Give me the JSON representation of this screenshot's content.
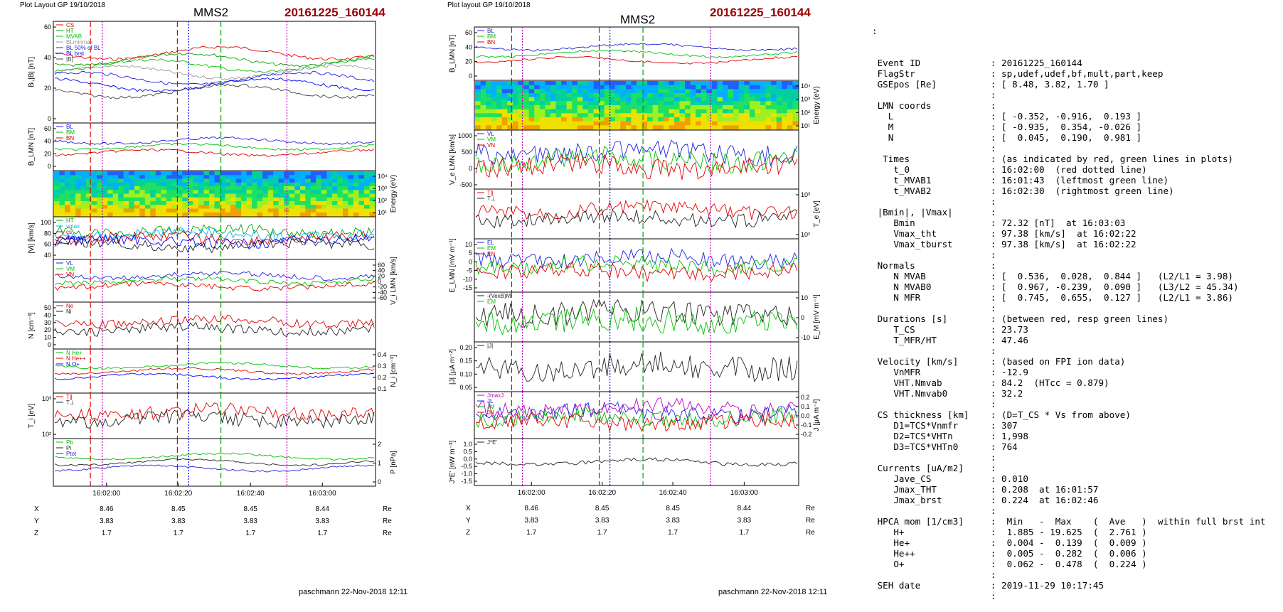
{
  "left_figure": {
    "header_left": "Plot Layout GP 19/10/2018",
    "spacecraft": "MMS2",
    "event_label": "20161225_160144",
    "footer": "paschmann 22-Nov-2018 12:11",
    "time_ticks": [
      "16:02:00",
      "16:02:20",
      "16:02:40",
      "16:03:00"
    ],
    "ephem": {
      "rows": [
        {
          "name": "X",
          "values": [
            "8.46",
            "8.45",
            "8.45",
            "8.44"
          ],
          "unit": "Re"
        },
        {
          "name": "Y",
          "values": [
            "3.83",
            "3.83",
            "3.83",
            "3.83"
          ],
          "unit": "Re"
        },
        {
          "name": "Z",
          "values": [
            "1.7",
            "1.7",
            "1.7",
            "1.7"
          ],
          "unit": "Re"
        }
      ]
    },
    "panels": [
      {
        "ylabel": "Bₗ,|B| [nT]",
        "yticks": [
          "60",
          "40",
          "20",
          "0"
        ],
        "right_ticks": [],
        "legend": [
          {
            "text": "CS",
            "color": "#e00000"
          },
          {
            "text": "HT",
            "color": "#00a000"
          },
          {
            "text": "MVAB",
            "color": "#00c000"
          },
          {
            "text": "BLminmax",
            "color": "#999999"
          },
          {
            "text": "BL 50% of BL",
            "color": "#2020e0"
          },
          {
            "text": "BL brst",
            "color": "#0000ff"
          },
          {
            "text": "|B|",
            "color": "#444444"
          }
        ]
      },
      {
        "ylabel": "B_LMN [nT]",
        "yticks": [
          "60",
          "40",
          "20",
          "0"
        ],
        "right_ticks": [],
        "legend": [
          {
            "text": "BL",
            "color": "#2020e0"
          },
          {
            "text": "BM",
            "color": "#00c000"
          },
          {
            "text": "BN",
            "color": "#e00000"
          }
        ]
      },
      {
        "ylabel": "",
        "yticks": [],
        "right_ticks": [
          "10⁴",
          "10³",
          "10²",
          "10¹"
        ],
        "right_label": "Energy (eV)",
        "legend": []
      },
      {
        "ylabel": "|Vi| [km/s]",
        "yticks": [
          "100",
          "80",
          "60",
          "40"
        ],
        "right_ticks": [],
        "legend": [
          {
            "text": "HT",
            "color": "#00a000"
          },
          {
            "text": "vmax",
            "color": "#00b0ff"
          },
          {
            "text": "cs",
            "color": "#e00000"
          },
          {
            "text": "dvmax",
            "color": "#0000ff"
          },
          {
            "text": "V",
            "color": "#222222"
          }
        ]
      },
      {
        "ylabel": "",
        "yticks": [],
        "right_ticks": [
          "60",
          "40",
          "20",
          "0",
          "-20",
          "-40",
          "-60"
        ],
        "right_label": "V_i LMN [km/s]",
        "legend": [
          {
            "text": "VL",
            "color": "#2020e0"
          },
          {
            "text": "VM",
            "color": "#00c000"
          },
          {
            "text": "VN",
            "color": "#e00000"
          }
        ]
      },
      {
        "ylabel": "N [cm⁻³]",
        "yticks": [
          "50",
          "40",
          "30",
          "20",
          "10",
          "0"
        ],
        "right_ticks": [],
        "legend": [
          {
            "text": "Ne",
            "color": "#e00000"
          },
          {
            "text": "Ni",
            "color": "#222222"
          }
        ]
      },
      {
        "ylabel": "",
        "yticks": [],
        "right_ticks": [
          "0.4",
          "0.3",
          "0.2",
          "0.1"
        ],
        "right_label": "N_i [cm⁻³]",
        "legend": [
          {
            "text": "N He+",
            "color": "#00c000"
          },
          {
            "text": "N He++",
            "color": "#e00000"
          },
          {
            "text": "N O+",
            "color": "#0000ff"
          }
        ]
      },
      {
        "ylabel": "T_i [eV]",
        "yticks": [
          "10³",
          "10²"
        ],
        "right_ticks": [],
        "legend": [
          {
            "text": "T∥",
            "color": "#e00000"
          },
          {
            "text": "T⊥",
            "color": "#222222"
          }
        ]
      },
      {
        "ylabel": "",
        "yticks": [],
        "right_ticks": [
          "2",
          "1",
          "0"
        ],
        "right_label": "P [nPa]",
        "legend": [
          {
            "text": "Pb",
            "color": "#00c000"
          },
          {
            "text": "Pi",
            "color": "#222222"
          },
          {
            "text": "Ptot",
            "color": "#2020e0"
          }
        ]
      }
    ]
  },
  "middle_figure": {
    "header_left": "Plot layout GP 19/10/2018",
    "spacecraft": "MMS2",
    "event_label": "20161225_160144",
    "footer": "paschmann 22-Nov-2018 12:11",
    "time_ticks": [
      "16:02:00",
      "16:02:20",
      "16:02:40",
      "16:03:00"
    ],
    "ephem": {
      "rows": [
        {
          "name": "X",
          "values": [
            "8.46",
            "8.45",
            "8.45",
            "8.44"
          ],
          "unit": "Re"
        },
        {
          "name": "Y",
          "values": [
            "3.83",
            "3.83",
            "3.83",
            "3.83"
          ],
          "unit": "Re"
        },
        {
          "name": "Z",
          "values": [
            "1.7",
            "1.7",
            "1.7",
            "1.7"
          ],
          "unit": "Re"
        }
      ]
    },
    "panels": [
      {
        "ylabel": "B_LMN [nT]",
        "yticks": [
          "60",
          "40",
          "20",
          "0"
        ],
        "right_ticks": [],
        "legend": [
          {
            "text": "BL",
            "color": "#2020e0"
          },
          {
            "text": "BM",
            "color": "#00c000"
          },
          {
            "text": "BN",
            "color": "#e00000"
          }
        ]
      },
      {
        "ylabel": "",
        "yticks": [],
        "right_ticks": [
          "10⁴",
          "10³",
          "10²",
          "10¹"
        ],
        "right_label": "Energy (eV)",
        "legend": []
      },
      {
        "ylabel": "V_e LMN [km/s]",
        "yticks": [
          "1000",
          "500",
          "0",
          "-500"
        ],
        "right_ticks": [],
        "legend": [
          {
            "text": "VL",
            "color": "#2020e0"
          },
          {
            "text": "VM",
            "color": "#00c000"
          },
          {
            "text": "VN",
            "color": "#e00000"
          }
        ]
      },
      {
        "ylabel": "",
        "yticks": [],
        "right_ticks": [
          "10³",
          "10²"
        ],
        "right_label": "T_e [eV]",
        "legend": [
          {
            "text": "T∥",
            "color": "#e00000"
          },
          {
            "text": "T⊥",
            "color": "#222222"
          }
        ]
      },
      {
        "ylabel": "E_LMN [mV m⁻¹]",
        "yticks": [
          "10",
          "5",
          "0",
          "-5",
          "-10",
          "-15"
        ],
        "right_ticks": [],
        "legend": [
          {
            "text": "EL",
            "color": "#2020e0"
          },
          {
            "text": "EM",
            "color": "#00c000"
          },
          {
            "text": "EN",
            "color": "#e00000"
          }
        ]
      },
      {
        "ylabel": "",
        "yticks": [],
        "right_ticks": [
          "10",
          "0",
          "-10"
        ],
        "right_label": "E_M [mV m⁻¹]",
        "legend": [
          {
            "text": "-(VexB)M",
            "color": "#222222"
          },
          {
            "text": "EM",
            "color": "#00c000"
          }
        ]
      },
      {
        "ylabel": "|J| [μA m⁻²]",
        "yticks": [
          "0.20",
          "0.15",
          "0.10",
          "0.05"
        ],
        "right_ticks": [],
        "legend": [
          {
            "text": "|J|",
            "color": "#222222"
          }
        ]
      },
      {
        "ylabel": "",
        "yticks": [],
        "right_ticks": [
          "0.2",
          "0.1",
          "0.0",
          "-0.1",
          "-0.2"
        ],
        "right_label": "J [μA m⁻²]",
        "legend": [
          {
            "text": "JmaxJ",
            "color": "#c000c0"
          },
          {
            "text": "JL",
            "color": "#2020e0"
          },
          {
            "text": "JM",
            "color": "#00c000"
          },
          {
            "text": "JN",
            "color": "#e00000"
          }
        ]
      },
      {
        "ylabel": "J*E' [nW m⁻³]",
        "yticks": [
          "1.0",
          "0.5",
          "0.0",
          "-0.5",
          "-1.0",
          "-1.5"
        ],
        "right_ticks": [],
        "legend": [
          {
            "text": "J*E'",
            "color": "#222222"
          }
        ]
      }
    ]
  },
  "info": {
    "top_marker": ":",
    "lines": [
      [
        "Event ID",
        "20161225_160144"
      ],
      [
        "FlagStr",
        "sp,udef,udef,bf,mult,part,keep"
      ],
      [
        "GSEpos [Re]",
        "[ 8.48, 3.82, 1.70 ]"
      ],
      [
        "",
        ""
      ],
      [
        "LMN coords",
        ""
      ],
      [
        "  L",
        "[ -0.352, -0.916,  0.193 ]"
      ],
      [
        "  M",
        "[ -0.935,  0.354, -0.026 ]"
      ],
      [
        "  N",
        "[  0.045,  0.190,  0.981 ]"
      ],
      [
        "",
        ""
      ],
      [
        " Times",
        "(as indicated by red, green lines in plots)"
      ],
      [
        "   t_0",
        "16:02:00  (red dotted line)"
      ],
      [
        "   t_MVAB1",
        "16:01:43  (leftmost green line)"
      ],
      [
        "   t_MVAB2",
        "16:02:30  (rightmost green line)"
      ],
      [
        "",
        ""
      ],
      [
        "|Bmin|, |Vmax|",
        ""
      ],
      [
        "   Bmin",
        "72.32 [nT]  at 16:03:03"
      ],
      [
        "   Vmax_tht",
        "97.38 [km/s]  at 16:02:22"
      ],
      [
        "   Vmax_tburst",
        "97.38 [km/s]  at 16:02:22"
      ],
      [
        "",
        ""
      ],
      [
        "Normals",
        ""
      ],
      [
        "   N MVAB",
        "[  0.536,  0.028,  0.844 ]   (L2/L1 = 3.98)"
      ],
      [
        "   N MVAB0",
        "[  0.967, -0.239,  0.090 ]   (L3/L2 = 45.34)"
      ],
      [
        "   N MFR",
        "[  0.745,  0.655,  0.127 ]   (L2/L1 = 3.86)"
      ],
      [
        "",
        ""
      ],
      [
        "Durations [s]",
        "(between red, resp green lines)"
      ],
      [
        "   T_CS",
        "23.73"
      ],
      [
        "   T_MFR/HT",
        "47.46"
      ],
      [
        "",
        ""
      ],
      [
        "Velocity [km/s]",
        "(based on FPI ion data)"
      ],
      [
        "   VnMFR",
        "-12.9"
      ],
      [
        "   VHT.Nmvab",
        "84.2  (HTcc = 0.879)"
      ],
      [
        "   VHT.Nmvab0",
        "32.2"
      ],
      [
        "",
        ""
      ],
      [
        "CS thickness [km]",
        "(D=T_CS * Vs from above)"
      ],
      [
        "   D1=TCS*Vnmfr",
        "307"
      ],
      [
        "   D2=TCS*VHTn",
        "1,998"
      ],
      [
        "   D3=TCS*VHTn0",
        "764"
      ],
      [
        "",
        ""
      ],
      [
        "Currents [uA/m2]",
        ""
      ],
      [
        "   Jave_CS",
        "0.010"
      ],
      [
        "   Jmax_THT",
        "0.208  at 16:01:57"
      ],
      [
        "   Jmax_brst",
        "0.224  at 16:02:46"
      ],
      [
        "",
        ""
      ],
      [
        "HPCA mom [1/cm3]",
        " Min   -  Max    (  Ave   )  within full brst int"
      ],
      [
        "   H+",
        " 1.885 - 19.625  (  2.761 )"
      ],
      [
        "   He+",
        " 0.004 -  0.139  (  0.009 )"
      ],
      [
        "   He++",
        " 0.005 -  0.282  (  0.006 )"
      ],
      [
        "   O+",
        " 0.062 -  0.478  (  0.224 )"
      ],
      [
        "",
        ""
      ],
      [
        "SEH date",
        "2019-11-29 10:17:45"
      ],
      [
        "",
        ""
      ]
    ]
  }
}
